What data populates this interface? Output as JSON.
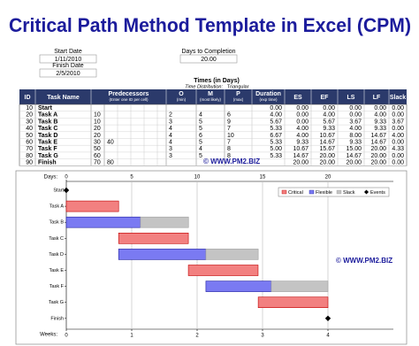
{
  "header": {
    "title": "Critical Path Method Template in Excel (CPM)",
    "start_date_label": "Start Date",
    "start_date": "1/11/2010",
    "finish_date_label": "Finish Date",
    "finish_date": "2/5/2010",
    "days_label": "Days to Completion",
    "days": "20.00"
  },
  "table": {
    "caption": "Times (in Days)",
    "distribution_label": "Time Distribution:",
    "distribution": "Triangular",
    "headers": [
      "ID",
      "Task Name",
      "Predecessors",
      "O",
      "M",
      "P",
      "Duration",
      "ES",
      "EF",
      "LS",
      "LF",
      "Slack"
    ],
    "subheaders": [
      "(Enter one ID per cell)",
      "(min)",
      "(most likely)",
      "(max)",
      "(exp time)"
    ],
    "rows": [
      [
        "10",
        "Start",
        null,
        null,
        null,
        null,
        null,
        "0.00",
        "0.00",
        "0.00",
        "0.00",
        "0.00",
        "0.00"
      ],
      [
        "20",
        "Task A",
        "10",
        null,
        "2",
        "4",
        "6",
        "4.00",
        "0.00",
        "4.00",
        "0.00",
        "4.00",
        "0.00"
      ],
      [
        "30",
        "Task B",
        "10",
        null,
        "3",
        "5",
        "9",
        "5.67",
        "0.00",
        "5.67",
        "3.67",
        "9.33",
        "3.67"
      ],
      [
        "40",
        "Task C",
        "20",
        null,
        "4",
        "5",
        "7",
        "5.33",
        "4.00",
        "9.33",
        "4.00",
        "9.33",
        "0.00"
      ],
      [
        "50",
        "Task D",
        "20",
        null,
        "4",
        "6",
        "10",
        "6.67",
        "4.00",
        "10.67",
        "8.00",
        "14.67",
        "4.00"
      ],
      [
        "60",
        "Task E",
        "30",
        "40",
        "4",
        "5",
        "7",
        "5.33",
        "9.33",
        "14.67",
        "9.33",
        "14.67",
        "0.00"
      ],
      [
        "70",
        "Task F",
        "50",
        null,
        "3",
        "4",
        "8",
        "5.00",
        "10.67",
        "15.67",
        "15.00",
        "20.00",
        "4.33"
      ],
      [
        "80",
        "Task G",
        "60",
        null,
        "3",
        "5",
        "8",
        "5.33",
        "14.67",
        "20.00",
        "14.67",
        "20.00",
        "0.00"
      ],
      [
        "90",
        "Finish",
        "70",
        "80",
        null,
        null,
        null,
        null,
        "20.00",
        "20.00",
        "20.00",
        "20.00",
        "0.00"
      ]
    ],
    "watermark": "© WWW.PM2.BIZ"
  },
  "chart_data": {
    "type": "gantt",
    "x_label": "Days:",
    "x2_label": "Weeks:",
    "watermark": "© WWW.PM2.BIZ",
    "categories": [
      "Start",
      "Task A",
      "Task B",
      "Task C",
      "Task D",
      "Task E",
      "Task F",
      "Task G",
      "Finish"
    ],
    "xlim": [
      0,
      25
    ],
    "xticks": [
      0,
      5,
      10,
      15,
      20
    ],
    "x2ticks": [
      {
        "value": 0,
        "label": "0"
      },
      {
        "value": 5,
        "label": "1"
      },
      {
        "value": 10,
        "label": "2"
      },
      {
        "value": 15,
        "label": "3"
      },
      {
        "value": 20,
        "label": "4"
      }
    ],
    "grid": true,
    "series": [
      {
        "name": "Critical",
        "color": "#f28080",
        "starts": [
          null,
          0,
          null,
          4,
          null,
          9.33,
          null,
          14.67,
          null
        ],
        "values": [
          null,
          4,
          null,
          5.33,
          null,
          5.33,
          null,
          5.33,
          null
        ]
      },
      {
        "name": "Flexible",
        "color": "#7a7af2",
        "starts": [
          null,
          null,
          0,
          null,
          4,
          null,
          10.67,
          null,
          null
        ],
        "values": [
          null,
          null,
          5.67,
          null,
          6.67,
          null,
          5,
          null,
          null
        ]
      },
      {
        "name": "Slack",
        "color": "#c4c4c4",
        "starts": [
          null,
          null,
          5.67,
          null,
          10.67,
          null,
          15.67,
          null,
          null
        ],
        "values": [
          null,
          null,
          3.67,
          null,
          4,
          null,
          4.33,
          null,
          null
        ]
      },
      {
        "name": "Events",
        "color": "#000000",
        "marker": "diamond",
        "values": [
          0,
          null,
          null,
          null,
          null,
          null,
          null,
          null,
          20
        ]
      }
    ]
  }
}
